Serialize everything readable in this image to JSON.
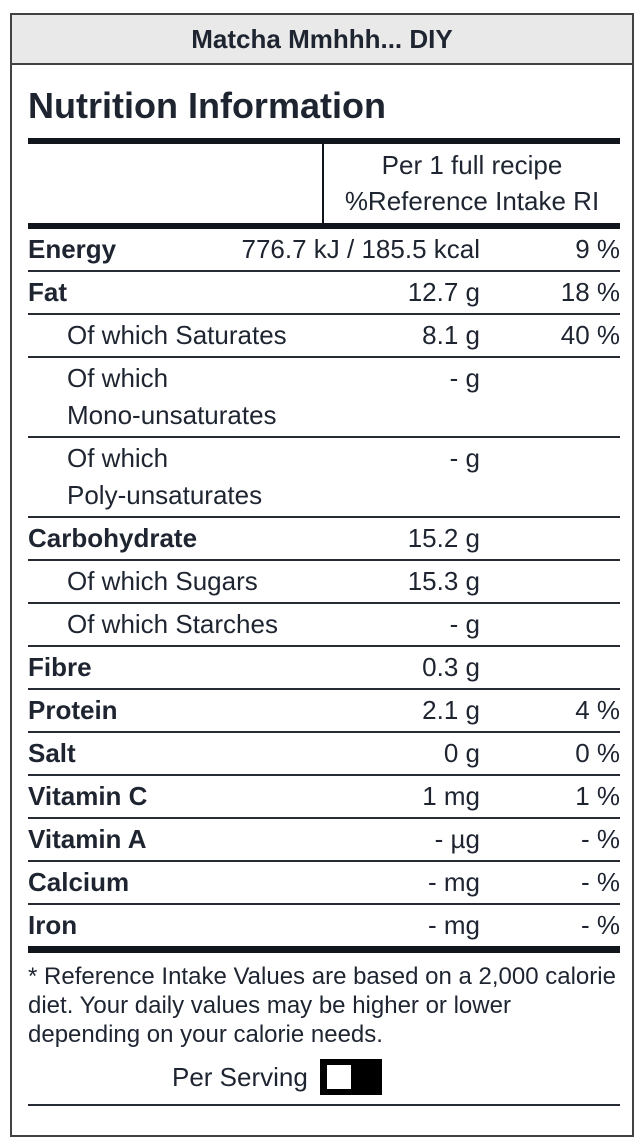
{
  "window": {
    "title": "Matcha Mmhhh... DIY"
  },
  "label": {
    "heading": "Nutrition Information",
    "column_header": {
      "line1": "Per 1 full recipe",
      "line2": "%Reference Intake RI"
    },
    "rows": [
      {
        "name": "energy",
        "style": "main",
        "label": "Energy",
        "value": "776.7 kJ / 185.5 kcal",
        "ri": "9 %"
      },
      {
        "name": "fat",
        "style": "main",
        "label": "Fat",
        "value": "12.7 g",
        "ri": "18 %"
      },
      {
        "name": "saturates",
        "style": "sub",
        "label": "Of which Saturates",
        "value": "8.1 g",
        "ri": "40 %"
      },
      {
        "name": "mono-unsaturates",
        "style": "sub",
        "label": "Of which\nMono-unsaturates",
        "value": "- g",
        "ri": ""
      },
      {
        "name": "poly-unsaturates",
        "style": "sub",
        "label": "Of which\nPoly-unsaturates",
        "value": "- g",
        "ri": ""
      },
      {
        "name": "carbohydrate",
        "style": "main",
        "label": "Carbohydrate",
        "value": "15.2 g",
        "ri": ""
      },
      {
        "name": "sugars",
        "style": "sub",
        "label": "Of which Sugars",
        "value": "15.3 g",
        "ri": ""
      },
      {
        "name": "starches",
        "style": "sub",
        "label": "Of which Starches",
        "value": "- g",
        "ri": ""
      },
      {
        "name": "fibre",
        "style": "main",
        "label": "Fibre",
        "value": "0.3 g",
        "ri": ""
      },
      {
        "name": "protein",
        "style": "main",
        "label": "Protein",
        "value": "2.1 g",
        "ri": "4 %"
      },
      {
        "name": "salt",
        "style": "main",
        "label": "Salt",
        "value": "0 g",
        "ri": "0 %"
      },
      {
        "name": "vitamin-c",
        "style": "main",
        "label": "Vitamin C",
        "value": "1 mg",
        "ri": "1 %"
      },
      {
        "name": "vitamin-a",
        "style": "main",
        "label": "Vitamin A",
        "value": "- µg",
        "ri": "- %"
      },
      {
        "name": "calcium",
        "style": "main",
        "label": "Calcium",
        "value": "- mg",
        "ri": "- %"
      },
      {
        "name": "iron",
        "style": "main",
        "label": "Iron",
        "value": "- mg",
        "ri": "- %"
      }
    ],
    "footnote": "* Reference Intake Values are based on a 2,000 calorie diet. Your daily values may be higher or lower depending on your calorie needs.",
    "per_serving": {
      "label": "Per Serving",
      "state": "off"
    }
  },
  "colors": {
    "text": "#1e2531",
    "border": "#424242",
    "titlebar_bg": "#e9e9e9",
    "line_thick": "#11151c",
    "line_thin": "#272c34",
    "toggle_track": "#000000",
    "toggle_knob": "#ffffff"
  }
}
